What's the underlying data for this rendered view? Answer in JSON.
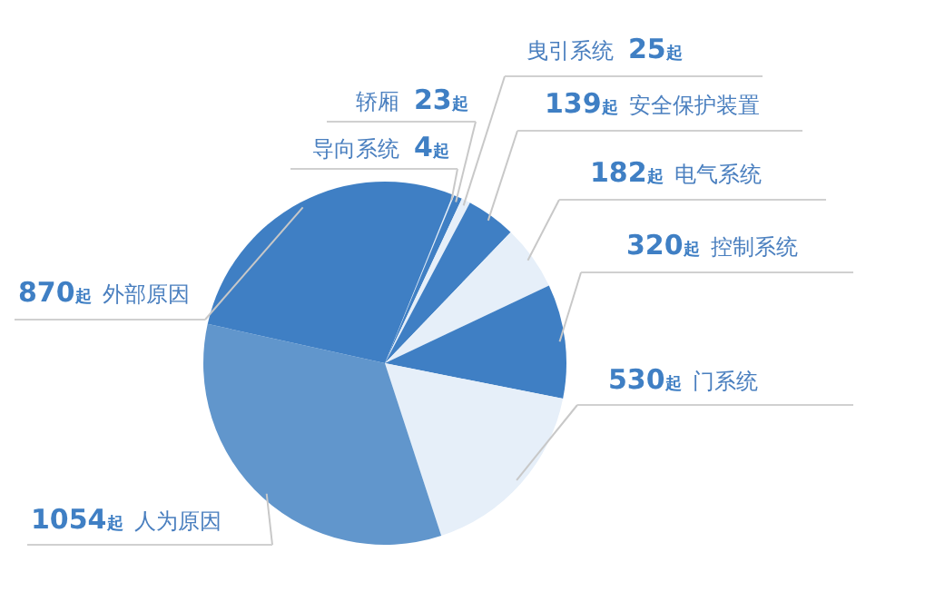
{
  "chart_data": {
    "type": "pie",
    "categories": [
      "导向系统",
      "轿厢",
      "曳引系统",
      "安全保护装置",
      "电气系统",
      "控制系统",
      "门系统",
      "人为原因",
      "外部原因"
    ],
    "values": [
      4,
      23,
      25,
      139,
      182,
      320,
      530,
      1054,
      870
    ],
    "value_labels": [
      "4起",
      "23起",
      "25起",
      "139起",
      "182起",
      "320起",
      "530起",
      "1054起",
      "870起"
    ],
    "colors": [
      "#e6eff9",
      "#3f7fc4",
      "#e6eff9",
      "#3f7fc4",
      "#e6eff9",
      "#3f7fc4",
      "#e6eff9",
      "#6196cc",
      "#3f7fc4"
    ]
  }
}
